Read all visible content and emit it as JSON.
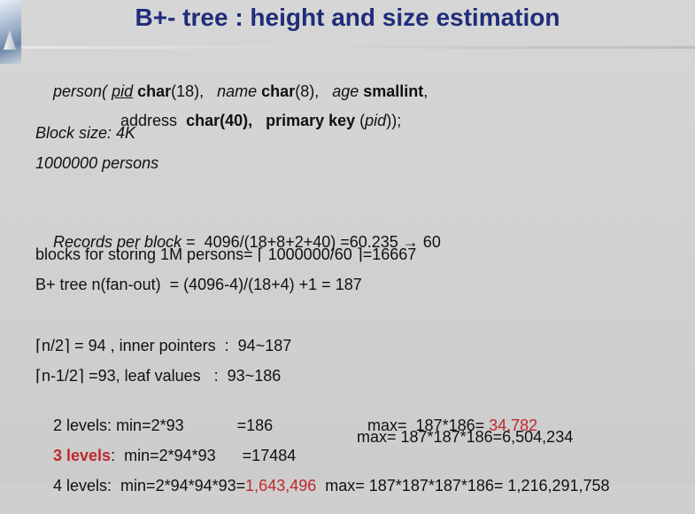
{
  "title": "B+- tree : height and size estimation",
  "schema": {
    "line1": {
      "p1": "person( ",
      "p2": "pid",
      "p3": " char",
      "p4": "(18),   ",
      "p5": "name",
      "p6": " char",
      "p7": "(8),   ",
      "p8": "age",
      "p9": " smallint",
      "p10": ","
    },
    "line2": {
      "p1": "address  ",
      "p2": "char(40),   primary key",
      "p3": " (",
      "p4": "pid",
      "p5": "));"
    }
  },
  "block_size": "Block size: 4K",
  "persons": "1000000 persons",
  "records_per_block": {
    "label": "Records per block",
    "expr": " =  4096/(18+8+2+40) =60.235 → 60"
  },
  "blocks_storing": "blocks for storing 1M persons= ⌈ 1000000/60 ⌉=16667",
  "fanout": "B+ tree n(fan-out)  = (4096-4)/(18+4) +1 = 187",
  "inner": "⌈n/2⌉ = 94 , inner pointers  :  94~187",
  "leaf": "⌈n-1/2⌉ =93, leaf values   :  93~186",
  "levels": {
    "l2": {
      "label": "2 levels:",
      "min": " min=2*93            =186",
      "max": "max=  187*186= ",
      "max_val": "34,782"
    },
    "l3": {
      "label": "3 levels",
      "min": ":  min=2*94*93      =17484",
      "max": "max= 187*187*186=6,504,234"
    },
    "l4": {
      "label": "4 levels:  min=2*94*94*93=",
      "min_val": "1,643,496",
      "max": "  max= 187*187*187*186= 1,216,291,758"
    }
  }
}
